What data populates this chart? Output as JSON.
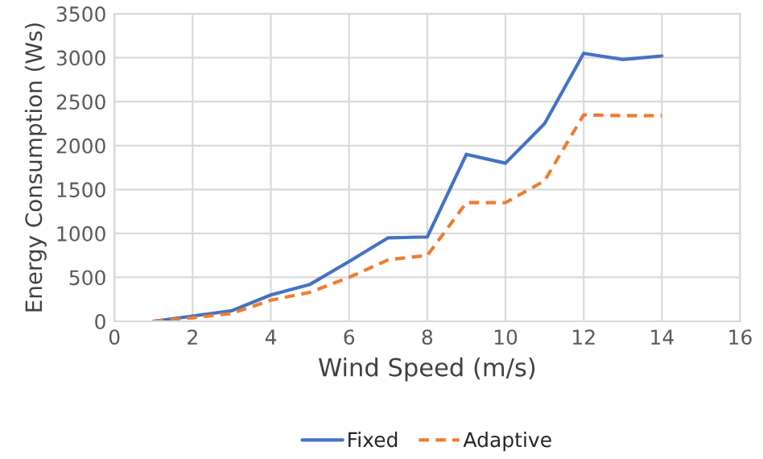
{
  "chart_data": {
    "type": "line",
    "xlabel": "Wind Speed (m/s)",
    "ylabel": "Energy Consumption (Ws)",
    "x": [
      1,
      2,
      3,
      4,
      5,
      6,
      7,
      8,
      9,
      10,
      11,
      12,
      13,
      14
    ],
    "series": [
      {
        "name": "Fixed",
        "color": "#4472c4",
        "line_style": "solid",
        "values": [
          0,
          60,
          120,
          300,
          420,
          680,
          950,
          960,
          1900,
          1800,
          2250,
          3050,
          2980,
          3020
        ]
      },
      {
        "name": "Adaptive",
        "color": "#ed7d31",
        "line_style": "dashed",
        "values": [
          0,
          40,
          90,
          240,
          330,
          500,
          700,
          750,
          1350,
          1350,
          1600,
          2350,
          2340,
          2340
        ]
      }
    ],
    "xlim": [
      0,
      16
    ],
    "xticks": [
      0,
      2,
      4,
      6,
      8,
      10,
      12,
      14,
      16
    ],
    "ylim": [
      0,
      3500
    ],
    "yticks": [
      0,
      500,
      1000,
      1500,
      2000,
      2500,
      3000,
      3500
    ],
    "grid": true,
    "legend": "bottom",
    "marker": "none"
  }
}
